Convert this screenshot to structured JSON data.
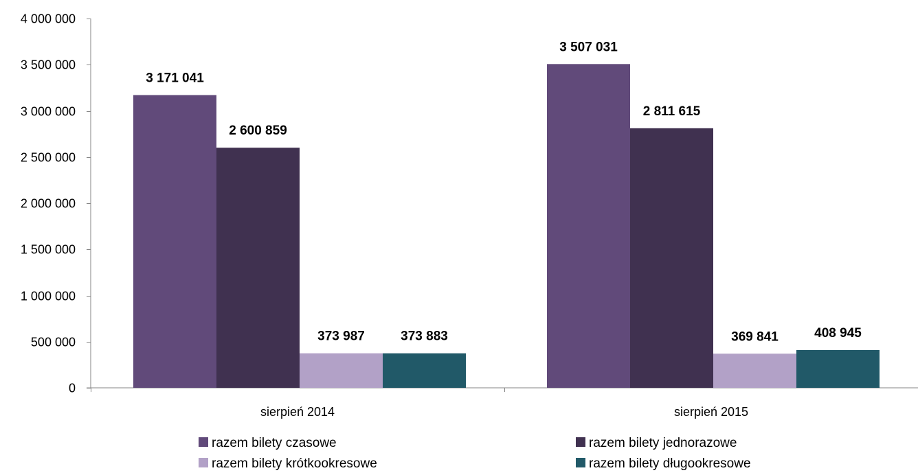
{
  "chart_data": {
    "type": "bar",
    "categories": [
      "sierpień 2014",
      "sierpień 2015"
    ],
    "series": [
      {
        "name": "razem bilety czasowe",
        "color": "#614A7A",
        "values": [
          3171041,
          3507031
        ],
        "labels": [
          "3 171 041",
          "3 507 031"
        ]
      },
      {
        "name": "razem bilety jednorazowe",
        "color": "#403150",
        "values": [
          2600859,
          2811615
        ],
        "labels": [
          "2 600 859",
          "2 811 615"
        ]
      },
      {
        "name": "razem bilety krótkookresowe",
        "color": "#B2A1C7",
        "values": [
          373987,
          369841
        ],
        "labels": [
          "373 987",
          "369 841"
        ]
      },
      {
        "name": "razem bilety długookresowe",
        "color": "#215968",
        "values": [
          373883,
          408945
        ],
        "labels": [
          "373 883",
          "408 945"
        ]
      }
    ],
    "ylim": [
      0,
      4000000
    ],
    "yticks": [
      0,
      500000,
      1000000,
      1500000,
      2000000,
      2500000,
      3000000,
      3500000,
      4000000
    ],
    "ytick_labels": [
      "0",
      "500 000",
      "1 000 000",
      "1 500 000",
      "2 000 000",
      "2 500 000",
      "3 000 000",
      "3 500 000",
      "4 000 000"
    ],
    "grid": false,
    "legend_position": "bottom",
    "title": "",
    "xlabel": "",
    "ylabel": ""
  }
}
